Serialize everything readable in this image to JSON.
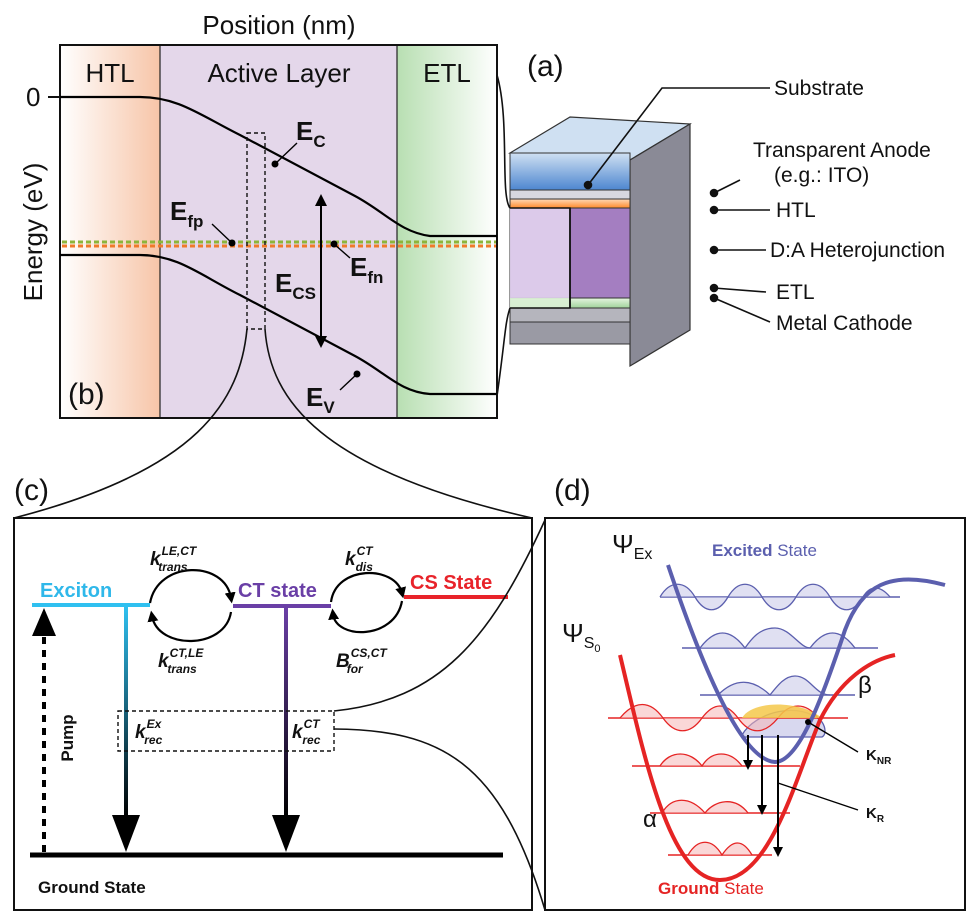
{
  "panel_b": {
    "x_axis_label": "Position (nm)",
    "y_axis_label": "Energy (eV)",
    "zero_tick": "0",
    "regions": {
      "htl": "HTL",
      "active": "Active Layer",
      "etl": "ETL"
    },
    "panel_tag": "(b)",
    "labels": {
      "ec_main": "E",
      "ec_sub": "C",
      "ev_main": "E",
      "ev_sub": "V",
      "efp_main": "E",
      "efp_sub": "fp",
      "efn_main": "E",
      "efn_sub": "fn",
      "ecs_main": "E",
      "ecs_sub": "CS"
    }
  },
  "panel_a": {
    "panel_tag": "(a)",
    "layers": {
      "substrate": "Substrate",
      "anode_line1": "Transparent Anode",
      "anode_line2": "(e.g.: ITO)",
      "htl": "HTL",
      "heterojunction": "D:A Heterojunction",
      "etl": "ETL",
      "cathode": "Metal Cathode"
    }
  },
  "panel_c": {
    "panel_tag": "(c)",
    "states": {
      "exciton": "Exciton",
      "ct": "CT state",
      "cs": "CS State",
      "ground": "Ground State"
    },
    "pump": "Pump",
    "rates": {
      "k": "k",
      "B": "B",
      "trans": "trans",
      "dis": "dis",
      "for": "for",
      "rec": "rec",
      "le_ct": "LE,CT",
      "ct_le": "CT,LE",
      "ct": "CT",
      "cs_ct": "CS,CT",
      "ex": "Ex"
    },
    "colors": {
      "exciton": "#2fc0f0",
      "ct": "#6a3fa6",
      "cs": "#e8232a"
    }
  },
  "panel_d": {
    "panel_tag": "(d)",
    "psi": "Ψ",
    "psi_ex_sub": "Ex",
    "psi_s0_sub": "S",
    "psi_s0_subsub": "0",
    "excited_bold": "Excited",
    "excited_rest": " State",
    "ground_bold": "Ground",
    "ground_rest": " State",
    "alpha": "α",
    "beta": "β",
    "k_nr_main": "K",
    "k_nr_sub": "NR",
    "k_r_main": "K",
    "k_r_sub": "R",
    "colors": {
      "excited": "#5b5fae",
      "ground": "#e52424"
    }
  }
}
